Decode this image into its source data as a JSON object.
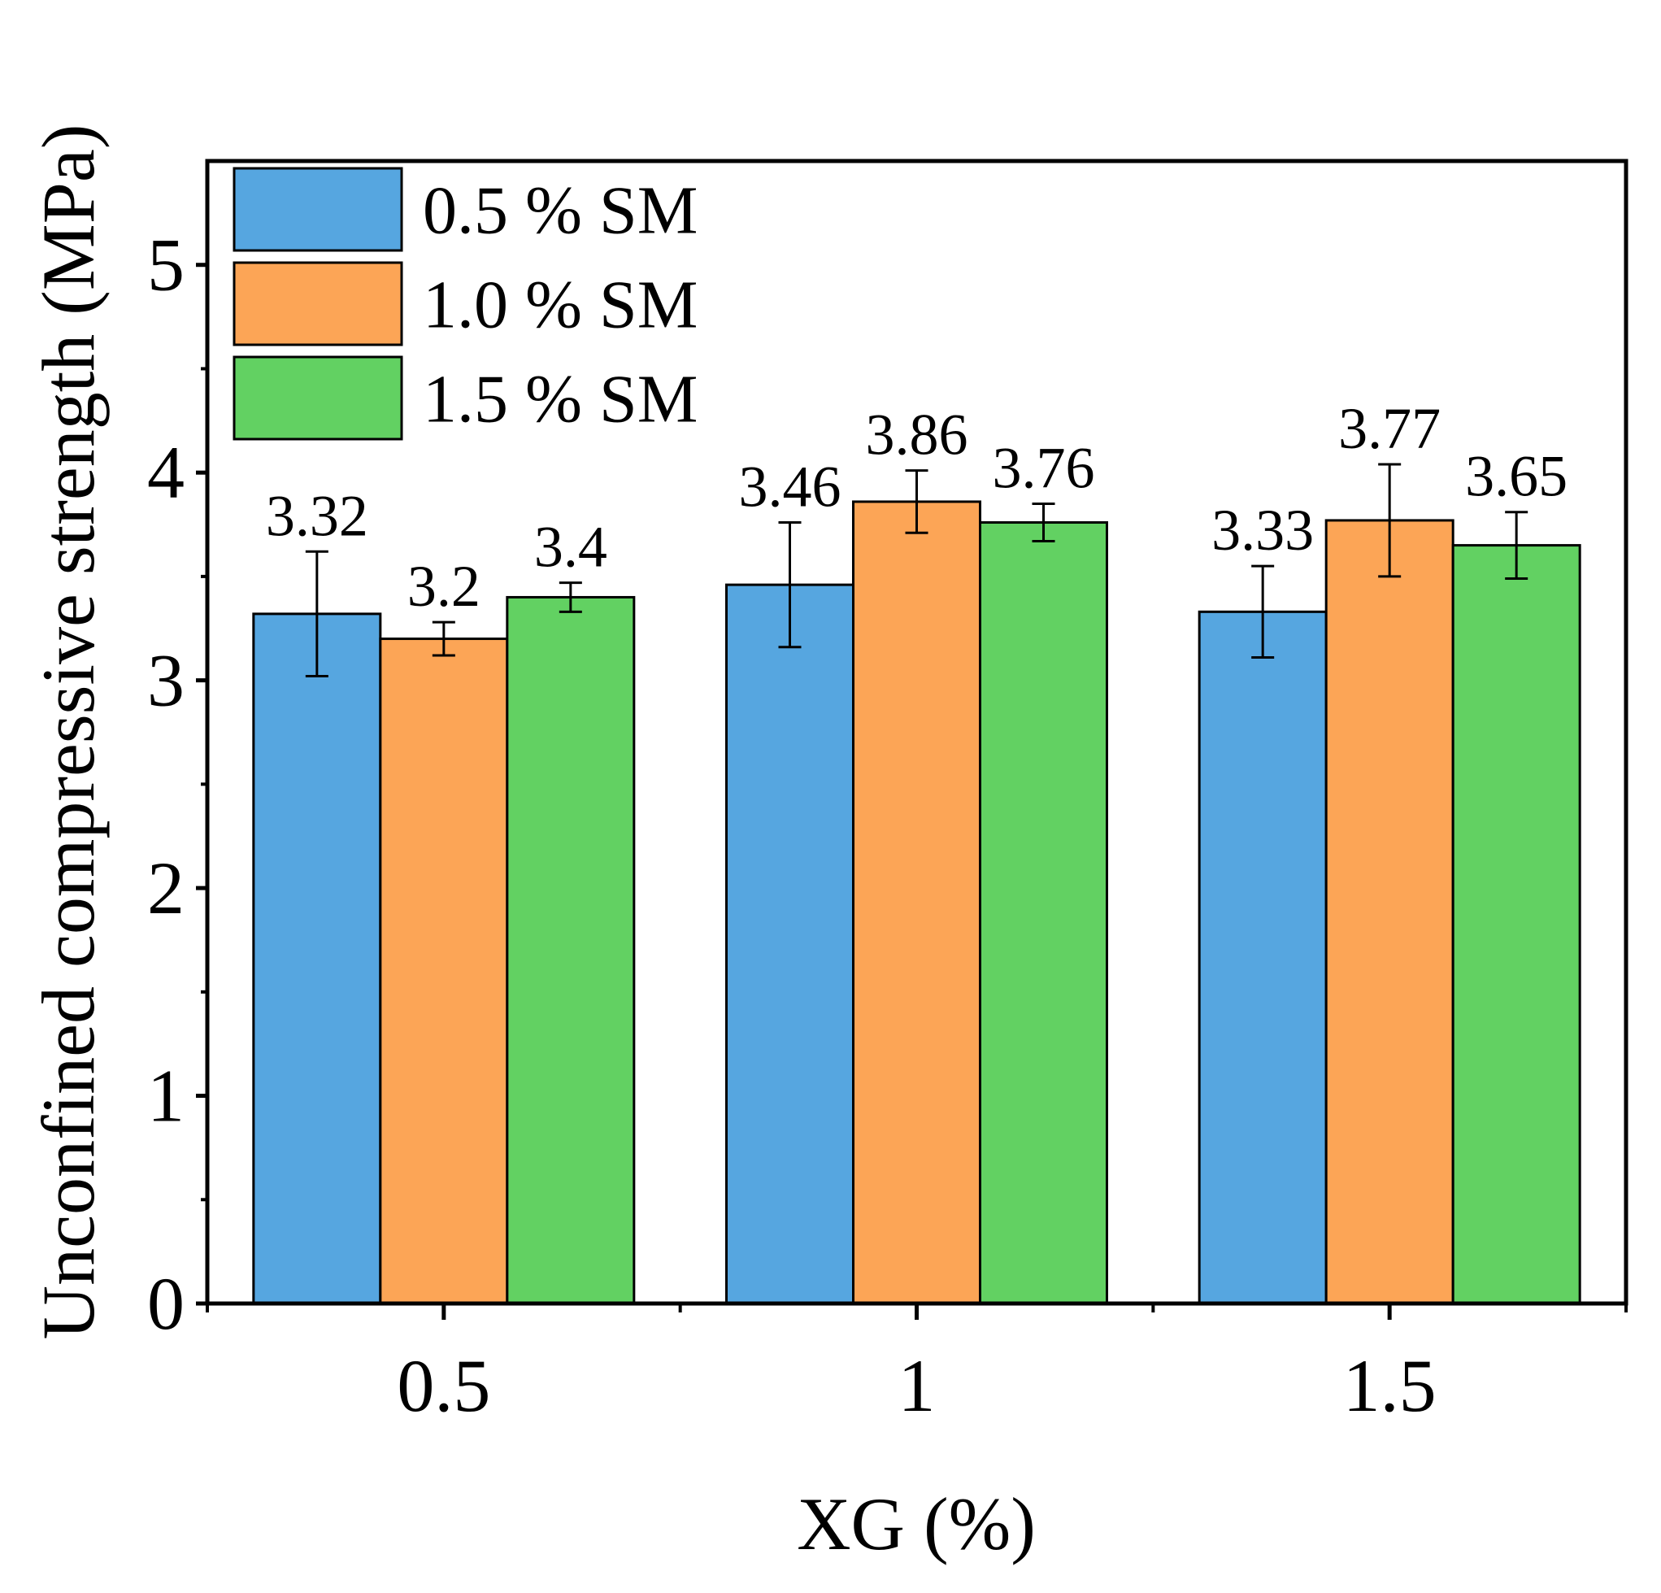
{
  "chart_data": {
    "type": "bar",
    "xlabel": "XG (%)",
    "ylabel": "Unconfined compressive strength (MPa)",
    "categories": [
      "0.5",
      "1",
      "1.5"
    ],
    "ylim": [
      0,
      5.5
    ],
    "yticks": [
      0,
      1,
      2,
      3,
      4,
      5
    ],
    "legend_position": "top-left",
    "series": [
      {
        "name": "0.5 % SM",
        "color": "#56A6E0",
        "values": [
          3.32,
          3.46,
          3.33
        ],
        "errors": [
          0.3,
          0.3,
          0.22
        ],
        "labels": [
          "3.32",
          "3.46",
          "3.33"
        ]
      },
      {
        "name": "1.0 % SM",
        "color": "#FCA556",
        "values": [
          3.2,
          3.86,
          3.77
        ],
        "errors": [
          0.08,
          0.15,
          0.27
        ],
        "labels": [
          "3.2",
          "3.86",
          "3.77"
        ]
      },
      {
        "name": "1.5 % SM",
        "color": "#62D162",
        "values": [
          3.4,
          3.76,
          3.65
        ],
        "errors": [
          0.07,
          0.09,
          0.16
        ],
        "labels": [
          "3.4",
          "3.76",
          "3.65"
        ]
      }
    ]
  }
}
